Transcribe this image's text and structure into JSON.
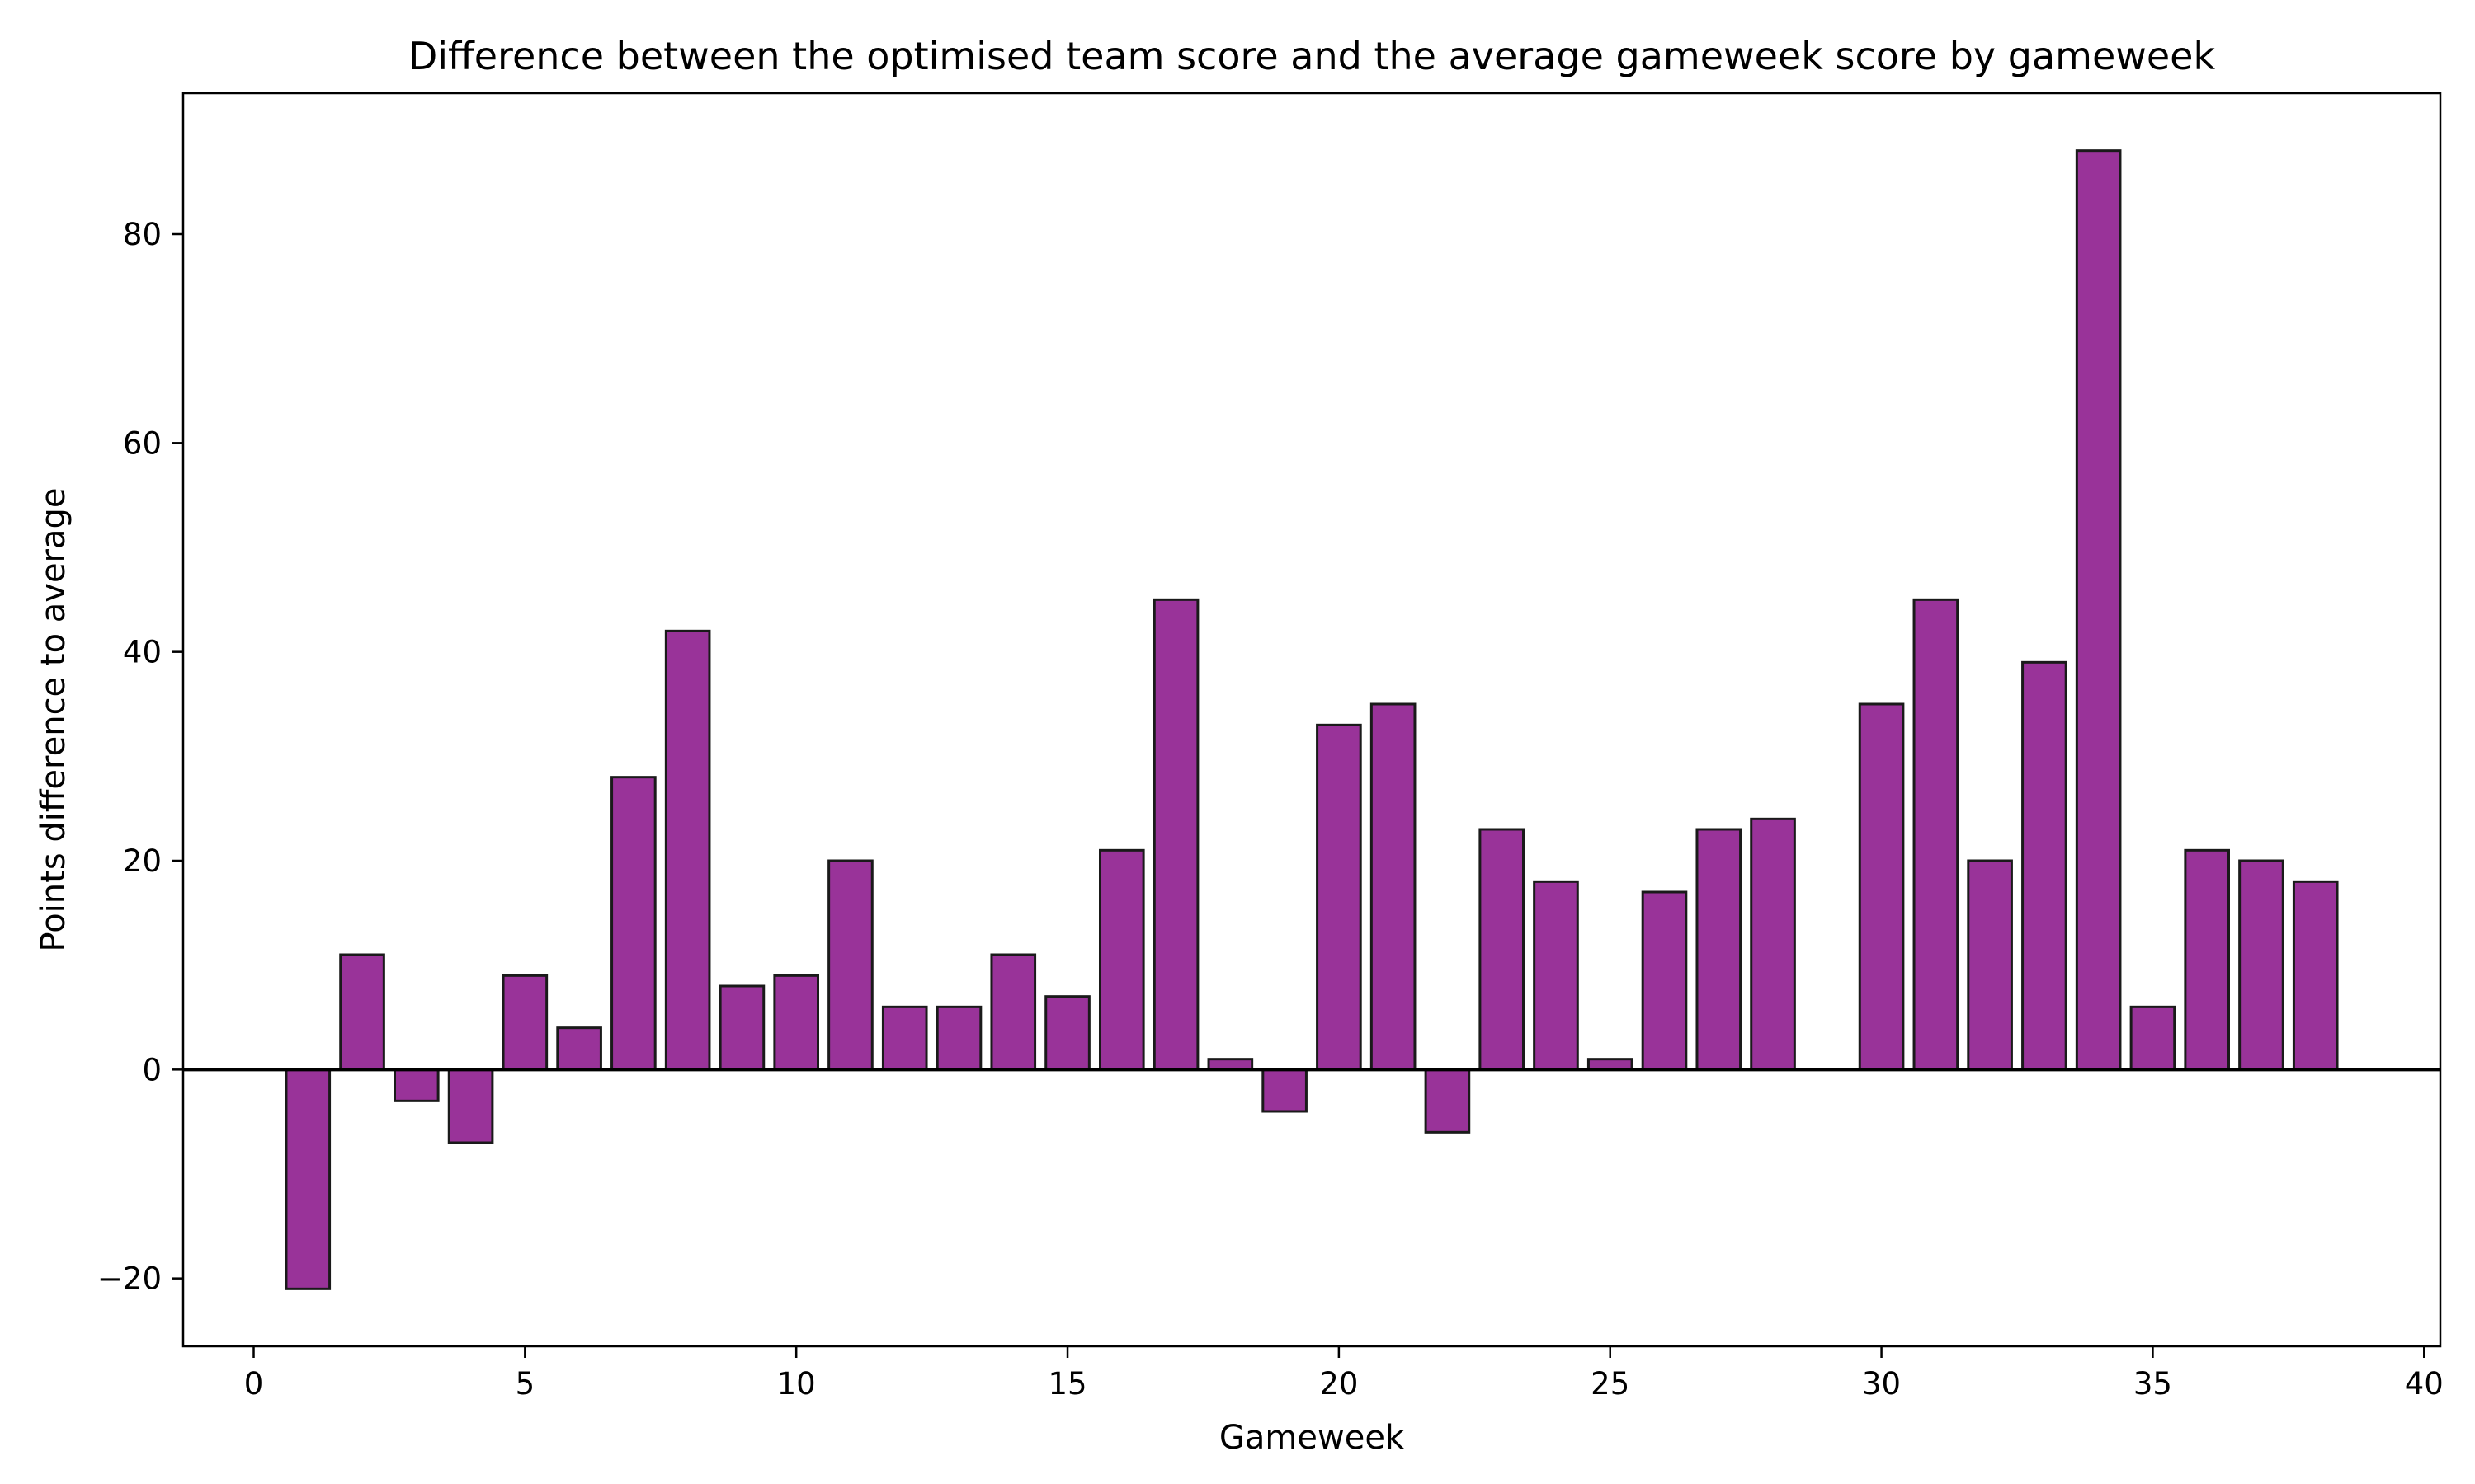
{
  "chart_data": {
    "type": "bar",
    "title": "Difference between the optimised team score and the average gameweek score by gameweek",
    "xlabel": "Gameweek",
    "ylabel": "Points difference to average",
    "xlim": [
      -1.3,
      40.3
    ],
    "ylim": [
      -26.5,
      93.5
    ],
    "xticks": [
      0,
      5,
      10,
      15,
      20,
      25,
      30,
      35,
      40
    ],
    "yticks": [
      -20,
      0,
      20,
      40,
      60,
      80
    ],
    "ytick_labels": [
      "−20",
      "0",
      "20",
      "40",
      "60",
      "80"
    ],
    "bar_width": 0.8,
    "grid": false,
    "legend": false,
    "bar_color": "#993399",
    "edge_color": "#1a1a1a",
    "zero_line": true,
    "x": [
      1,
      2,
      3,
      4,
      5,
      6,
      7,
      8,
      9,
      10,
      11,
      12,
      13,
      14,
      15,
      16,
      17,
      18,
      19,
      20,
      21,
      22,
      23,
      24,
      25,
      26,
      27,
      28,
      30,
      31,
      32,
      33,
      34,
      35,
      36,
      37,
      38
    ],
    "values": [
      -21,
      11,
      -3,
      -7,
      9,
      4,
      28,
      42,
      8,
      9,
      20,
      6,
      6,
      11,
      7,
      21,
      45,
      1,
      -4,
      33,
      35,
      -6,
      23,
      18,
      1,
      17,
      23,
      24,
      35,
      45,
      20,
      39,
      88,
      6,
      21,
      20,
      18
    ]
  }
}
